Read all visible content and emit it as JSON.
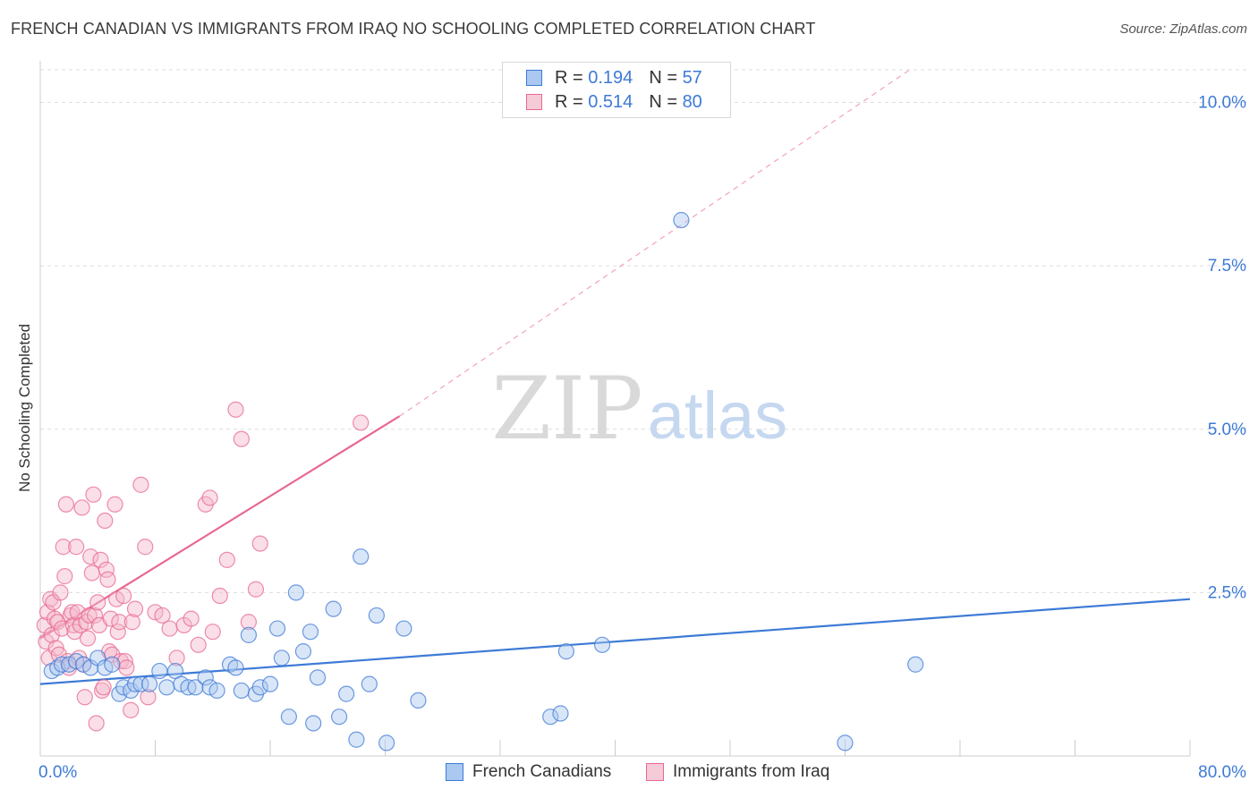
{
  "title": "FRENCH CANADIAN VS IMMIGRANTS FROM IRAQ NO SCHOOLING COMPLETED CORRELATION CHART",
  "source": "Source: ZipAtlas.com",
  "watermark": {
    "zip": "ZIP",
    "atlas": "atlas"
  },
  "legend": {
    "blue": {
      "r_label": "R =",
      "r_value": "0.194",
      "n_label": "N =",
      "n_value": "57"
    },
    "pink": {
      "r_label": "R =",
      "r_value": "0.514",
      "n_label": "N =",
      "n_value": "80"
    }
  },
  "colors": {
    "blue": "#3d7ad6",
    "blue_fill": "#aac8f0",
    "pink": "#e8688f",
    "pink_fill": "#f5b8cb",
    "grid": "#dddddd"
  },
  "chart_data": {
    "type": "scatter",
    "xlabel": "",
    "ylabel": "No Schooling Completed",
    "xlim": [
      0,
      80
    ],
    "ylim": [
      0,
      10.5
    ],
    "x_tick_labels": [
      "0.0%",
      "80.0%"
    ],
    "y_ticks": [
      2.5,
      5.0,
      7.5,
      10.0
    ],
    "y_tick_labels": [
      "2.5%",
      "5.0%",
      "7.5%",
      "10.0%"
    ],
    "series": [
      {
        "name": "French Canadians",
        "color": "#3d7ad6",
        "points": [
          [
            0.8,
            1.3
          ],
          [
            1.2,
            1.35
          ],
          [
            1.5,
            1.4
          ],
          [
            2.0,
            1.4
          ],
          [
            2.5,
            1.45
          ],
          [
            3.0,
            1.4
          ],
          [
            3.5,
            1.35
          ],
          [
            4.0,
            1.5
          ],
          [
            4.5,
            1.35
          ],
          [
            5.0,
            1.4
          ],
          [
            5.5,
            0.95
          ],
          [
            5.8,
            1.05
          ],
          [
            6.3,
            1.0
          ],
          [
            6.6,
            1.1
          ],
          [
            7.0,
            1.1
          ],
          [
            7.6,
            1.1
          ],
          [
            8.3,
            1.3
          ],
          [
            8.8,
            1.05
          ],
          [
            9.4,
            1.3
          ],
          [
            9.8,
            1.1
          ],
          [
            10.3,
            1.05
          ],
          [
            10.8,
            1.05
          ],
          [
            11.5,
            1.2
          ],
          [
            11.8,
            1.05
          ],
          [
            12.3,
            1.0
          ],
          [
            13.2,
            1.4
          ],
          [
            13.6,
            1.35
          ],
          [
            14.0,
            1.0
          ],
          [
            14.5,
            1.85
          ],
          [
            15.0,
            0.95
          ],
          [
            15.3,
            1.05
          ],
          [
            16.0,
            1.1
          ],
          [
            16.5,
            1.95
          ],
          [
            16.8,
            1.5
          ],
          [
            17.3,
            0.6
          ],
          [
            17.8,
            2.5
          ],
          [
            18.3,
            1.6
          ],
          [
            18.8,
            1.9
          ],
          [
            19.0,
            0.5
          ],
          [
            19.3,
            1.2
          ],
          [
            20.4,
            2.25
          ],
          [
            20.8,
            0.6
          ],
          [
            21.3,
            0.95
          ],
          [
            22.0,
            0.25
          ],
          [
            22.3,
            3.05
          ],
          [
            22.9,
            1.1
          ],
          [
            23.4,
            2.15
          ],
          [
            24.1,
            0.2
          ],
          [
            25.3,
            1.95
          ],
          [
            26.3,
            0.85
          ],
          [
            35.5,
            0.6
          ],
          [
            36.2,
            0.65
          ],
          [
            36.6,
            1.6
          ],
          [
            39.1,
            1.7
          ],
          [
            44.6,
            8.2
          ],
          [
            56.0,
            0.2
          ],
          [
            60.9,
            1.4
          ]
        ]
      },
      {
        "name": "Immigrants from Iraq",
        "color": "#e8688f",
        "points": [
          [
            0.3,
            2.0
          ],
          [
            0.4,
            1.75
          ],
          [
            0.5,
            2.2
          ],
          [
            0.6,
            1.5
          ],
          [
            0.7,
            2.4
          ],
          [
            0.8,
            1.85
          ],
          [
            0.9,
            2.35
          ],
          [
            1.0,
            2.1
          ],
          [
            1.1,
            1.65
          ],
          [
            1.2,
            2.05
          ],
          [
            1.3,
            1.55
          ],
          [
            1.4,
            2.5
          ],
          [
            1.5,
            1.95
          ],
          [
            1.6,
            3.2
          ],
          [
            1.7,
            2.75
          ],
          [
            1.8,
            3.85
          ],
          [
            1.9,
            1.45
          ],
          [
            2.0,
            1.35
          ],
          [
            2.1,
            2.15
          ],
          [
            2.2,
            2.2
          ],
          [
            2.3,
            2.0
          ],
          [
            2.4,
            1.9
          ],
          [
            2.5,
            3.2
          ],
          [
            2.6,
            2.2
          ],
          [
            2.7,
            1.5
          ],
          [
            2.8,
            2.0
          ],
          [
            2.9,
            3.8
          ],
          [
            3.0,
            1.4
          ],
          [
            3.1,
            0.9
          ],
          [
            3.2,
            2.05
          ],
          [
            3.3,
            1.8
          ],
          [
            3.4,
            2.15
          ],
          [
            3.5,
            3.05
          ],
          [
            3.6,
            2.8
          ],
          [
            3.7,
            4.0
          ],
          [
            3.8,
            2.15
          ],
          [
            3.9,
            0.5
          ],
          [
            4.0,
            2.35
          ],
          [
            4.1,
            2.0
          ],
          [
            4.2,
            3.0
          ],
          [
            4.3,
            1.0
          ],
          [
            4.4,
            1.05
          ],
          [
            4.5,
            3.6
          ],
          [
            4.6,
            2.85
          ],
          [
            4.7,
            2.7
          ],
          [
            4.8,
            1.6
          ],
          [
            4.9,
            2.1
          ],
          [
            5.0,
            1.55
          ],
          [
            5.2,
            3.85
          ],
          [
            5.3,
            2.4
          ],
          [
            5.4,
            1.9
          ],
          [
            5.5,
            2.05
          ],
          [
            5.6,
            1.45
          ],
          [
            5.8,
            2.45
          ],
          [
            5.9,
            1.45
          ],
          [
            6.0,
            1.35
          ],
          [
            6.3,
            0.7
          ],
          [
            6.4,
            2.05
          ],
          [
            6.6,
            2.25
          ],
          [
            7.0,
            4.15
          ],
          [
            7.3,
            3.2
          ],
          [
            7.5,
            0.9
          ],
          [
            8.0,
            2.2
          ],
          [
            8.5,
            2.15
          ],
          [
            9.0,
            1.95
          ],
          [
            9.5,
            1.5
          ],
          [
            10.0,
            2.0
          ],
          [
            10.5,
            2.1
          ],
          [
            11.0,
            1.7
          ],
          [
            11.5,
            3.85
          ],
          [
            11.8,
            3.95
          ],
          [
            12.0,
            1.9
          ],
          [
            12.5,
            2.45
          ],
          [
            13.0,
            3.0
          ],
          [
            13.6,
            5.3
          ],
          [
            14.0,
            4.85
          ],
          [
            14.5,
            2.05
          ],
          [
            15.0,
            2.55
          ],
          [
            15.3,
            3.25
          ],
          [
            22.3,
            5.1
          ]
        ]
      }
    ],
    "trendlines": [
      {
        "series": "French Canadians",
        "x": [
          0,
          80
        ],
        "y": [
          1.1,
          2.4
        ],
        "style": "solid"
      },
      {
        "series": "Immigrants from Iraq",
        "x": [
          0,
          25
        ],
        "y": [
          1.8,
          5.2
        ],
        "style": "solid"
      },
      {
        "series": "Immigrants from Iraq",
        "x": [
          25,
          60.5
        ],
        "y": [
          5.2,
          10.5
        ],
        "style": "dashed"
      }
    ]
  }
}
